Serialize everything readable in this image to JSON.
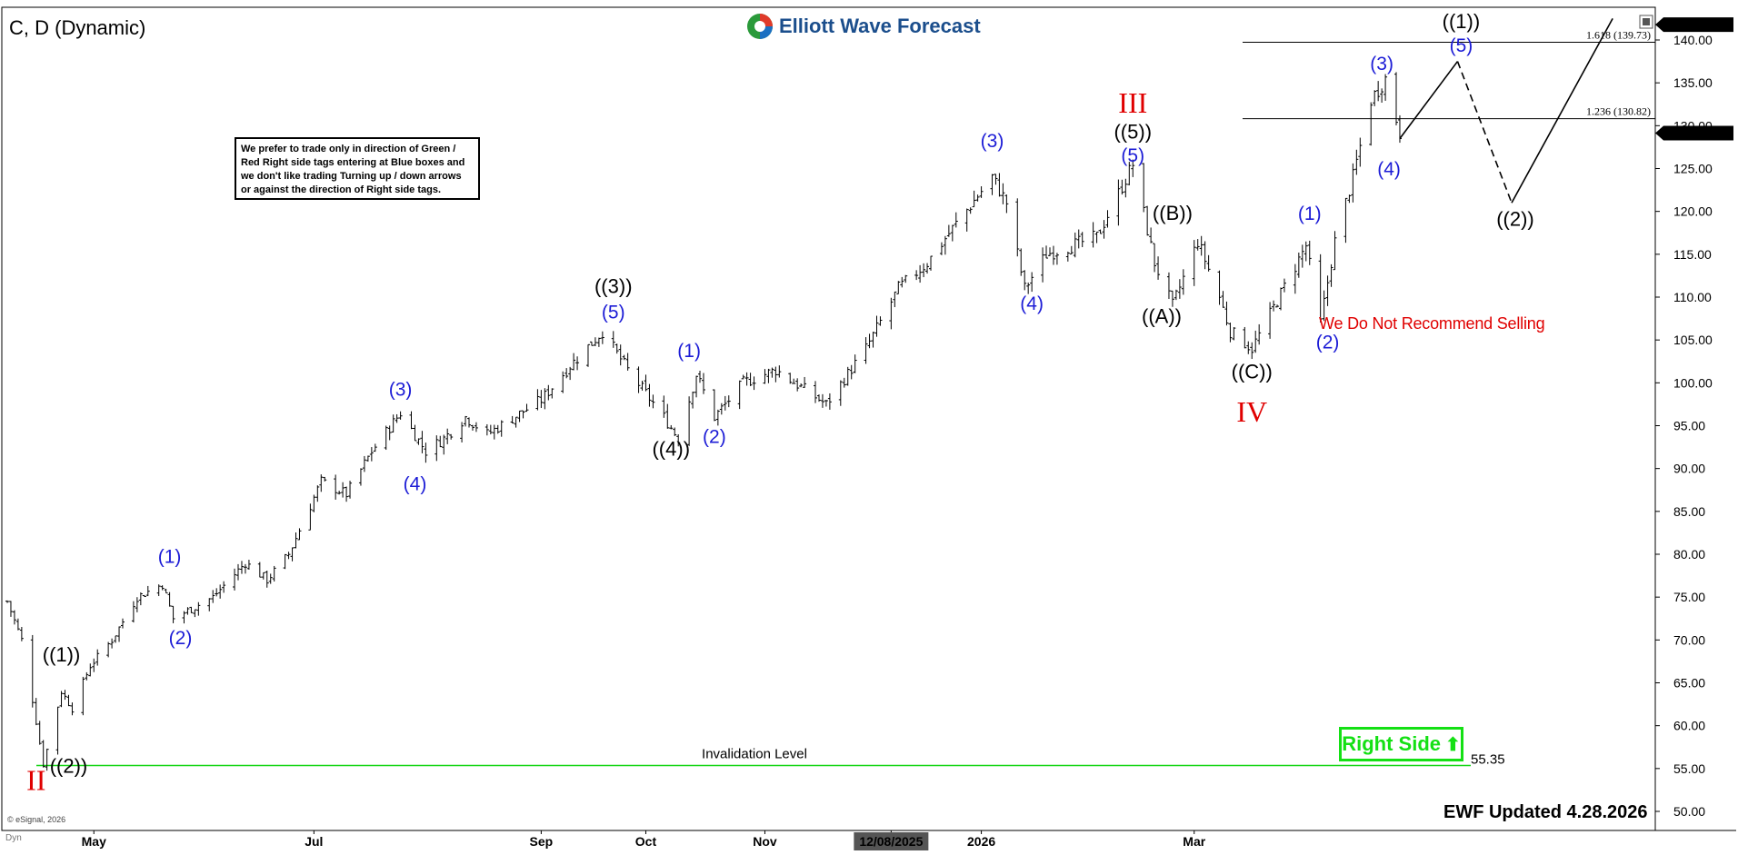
{
  "header": {
    "symbol_title": "C, D (Dynamic)",
    "logo_text": "Elliott Wave Forecast"
  },
  "note_box_text": "We prefer to trade only in direction of Green / Red Right side tags entering at Blue boxes and we don't like trading Turning up / down arrows or against the direction of Right side tags.",
  "no_sell_text": "We Do Not Recommend Selling",
  "right_side_label": "Right Side",
  "updated_text": "EWF Updated 4.28.2026",
  "esignal_text": "© eSignal, 2026",
  "dyn_text": "Dyn",
  "invalidation": {
    "label": "Invalidation Level",
    "value_text": "55.35",
    "value": 55.35
  },
  "colors": {
    "wave_blue": "#1c1cd6",
    "wave_red": "#e00000",
    "right_side_green": "#14e014",
    "invalidation_line": "#16d616",
    "bar": "#000000",
    "logo_blue": "#1b4e8c"
  },
  "chart_data": {
    "type": "ohlc",
    "title": "C, D (Dynamic)",
    "ylim": [
      49,
      143
    ],
    "y_ticks": [
      50,
      55,
      60,
      65,
      70,
      75,
      80,
      85,
      90,
      95,
      100,
      105,
      110,
      115,
      120,
      125,
      130,
      135,
      140
    ],
    "x_tick_labels": [
      "May",
      "Jul",
      "Sep",
      "Oct",
      "Nov",
      "12/08/2025",
      "2026",
      "Mar"
    ],
    "x_range": [
      "2025-04-07",
      "2026-06-30"
    ],
    "price_tags": [
      {
        "label": "141.79",
        "value": 141.79
      },
      {
        "label": "129.14",
        "value": 129.14
      }
    ],
    "fib_levels": [
      {
        "label": "1.618 (139.73)",
        "value": 139.73
      },
      {
        "label": "1.236 (130.82)",
        "value": 130.82
      }
    ],
    "price_path": [
      [
        "2025-04-07",
        74.5
      ],
      [
        "2025-04-11",
        70
      ],
      [
        "2025-04-14",
        63
      ],
      [
        "2025-04-17",
        55.5
      ],
      [
        "2025-04-22",
        64
      ],
      [
        "2025-04-25",
        62
      ],
      [
        "2025-04-30",
        67
      ],
      [
        "2025-05-06",
        70
      ],
      [
        "2025-05-13",
        75
      ],
      [
        "2025-05-20",
        76.5
      ],
      [
        "2025-05-23",
        72.5
      ],
      [
        "2025-06-03",
        75
      ],
      [
        "2025-06-12",
        79
      ],
      [
        "2025-06-18",
        77
      ],
      [
        "2025-06-24",
        80
      ],
      [
        "2025-07-03",
        88.5
      ],
      [
        "2025-07-10",
        87
      ],
      [
        "2025-07-17",
        92
      ],
      [
        "2025-07-25",
        96.5
      ],
      [
        "2025-08-01",
        92
      ],
      [
        "2025-08-06",
        93.5
      ],
      [
        "2025-08-12",
        96
      ],
      [
        "2025-08-18",
        94
      ],
      [
        "2025-09-02",
        98
      ],
      [
        "2025-09-10",
        102
      ],
      [
        "2025-09-19",
        106
      ],
      [
        "2025-09-26",
        101.5
      ],
      [
        "2025-10-06",
        96
      ],
      [
        "2025-10-10",
        93.5
      ],
      [
        "2025-10-15",
        101
      ],
      [
        "2025-10-20",
        96
      ],
      [
        "2025-10-28",
        100
      ],
      [
        "2025-11-06",
        101.5
      ],
      [
        "2025-11-13",
        99.5
      ],
      [
        "2025-11-20",
        97.5
      ],
      [
        "2025-12-01",
        104
      ],
      [
        "2025-12-10",
        111
      ],
      [
        "2025-12-18",
        114
      ],
      [
        "2025-12-25",
        118
      ],
      [
        "2026-01-05",
        124
      ],
      [
        "2026-01-09",
        121
      ],
      [
        "2026-01-14",
        111
      ],
      [
        "2026-01-20",
        115
      ],
      [
        "2026-02-03",
        117
      ],
      [
        "2026-02-13",
        125.5
      ],
      [
        "2026-02-19",
        114
      ],
      [
        "2026-02-24",
        109
      ],
      [
        "2026-03-03",
        116.5
      ],
      [
        "2026-03-09",
        110
      ],
      [
        "2026-03-12",
        106
      ],
      [
        "2026-03-18",
        104
      ],
      [
        "2026-03-23",
        108
      ],
      [
        "2026-04-02",
        116
      ],
      [
        "2026-04-06",
        107
      ],
      [
        "2026-04-10",
        116.5
      ],
      [
        "2026-04-15",
        124
      ],
      [
        "2026-04-20",
        133
      ],
      [
        "2026-04-24",
        135.5
      ],
      [
        "2026-04-28",
        129.14
      ]
    ],
    "projection": [
      {
        "style": "solid",
        "points": [
          [
            "2026-04-28",
            128.5
          ],
          [
            "2026-05-14",
            137.5
          ]
        ]
      },
      {
        "style": "dashed",
        "points": [
          [
            "2026-05-14",
            137.5
          ],
          [
            "2026-05-29",
            121
          ]
        ]
      },
      {
        "style": "solid",
        "points": [
          [
            "2026-05-29",
            121
          ],
          [
            "2026-06-26",
            142.5
          ]
        ]
      }
    ],
    "wave_labels": [
      {
        "text": "((1))",
        "color": "black",
        "date": "2025-04-22",
        "price": 67.5
      },
      {
        "text": "((2))",
        "color": "black",
        "date": "2025-04-24",
        "price": 54.5
      },
      {
        "text": "II",
        "color": "red",
        "date": "2025-04-15",
        "price": 52.5
      },
      {
        "text": "(1)",
        "color": "blue",
        "date": "2025-05-22",
        "price": 79
      },
      {
        "text": "(2)",
        "color": "blue",
        "date": "2025-05-25",
        "price": 69.5
      },
      {
        "text": "(3)",
        "color": "blue",
        "date": "2025-07-25",
        "price": 98.5
      },
      {
        "text": "(4)",
        "color": "blue",
        "date": "2025-07-29",
        "price": 87.5
      },
      {
        "text": "((3))",
        "color": "black",
        "date": "2025-09-22",
        "price": 110.5
      },
      {
        "text": "(5)",
        "color": "blue",
        "date": "2025-09-22",
        "price": 107.5
      },
      {
        "text": "((4))",
        "color": "black",
        "date": "2025-10-08",
        "price": 91.5
      },
      {
        "text": "(1)",
        "color": "blue",
        "date": "2025-10-13",
        "price": 103
      },
      {
        "text": "(2)",
        "color": "blue",
        "date": "2025-10-20",
        "price": 93
      },
      {
        "text": "(3)",
        "color": "blue",
        "date": "2026-01-05",
        "price": 127.5
      },
      {
        "text": "(4)",
        "color": "blue",
        "date": "2026-01-16",
        "price": 108.5
      },
      {
        "text": "III",
        "color": "red",
        "date": "2026-02-13",
        "price": 131.5
      },
      {
        "text": "((5))",
        "color": "black",
        "date": "2026-02-13",
        "price": 128.5
      },
      {
        "text": "(5)",
        "color": "blue",
        "date": "2026-02-13",
        "price": 125.8
      },
      {
        "text": "((B))",
        "color": "black",
        "date": "2026-02-24",
        "price": 119
      },
      {
        "text": "((A))",
        "color": "black",
        "date": "2026-02-21",
        "price": 107
      },
      {
        "text": "((C))",
        "color": "black",
        "date": "2026-03-18",
        "price": 100.5
      },
      {
        "text": "IV",
        "color": "red",
        "date": "2026-03-18",
        "price": 95.5
      },
      {
        "text": "(1)",
        "color": "blue",
        "date": "2026-04-03",
        "price": 119
      },
      {
        "text": "(2)",
        "color": "blue",
        "date": "2026-04-08",
        "price": 104
      },
      {
        "text": "(3)",
        "color": "blue",
        "date": "2026-04-23",
        "price": 136.5
      },
      {
        "text": "(4)",
        "color": "blue",
        "date": "2026-04-25",
        "price": 124.2
      },
      {
        "text": "((1))",
        "color": "black",
        "date": "2026-05-15",
        "price": 141.4
      },
      {
        "text": "(5)",
        "color": "blue",
        "date": "2026-05-15",
        "price": 138.6
      },
      {
        "text": "((2))",
        "color": "black",
        "date": "2026-05-30",
        "price": 118.3
      }
    ]
  }
}
